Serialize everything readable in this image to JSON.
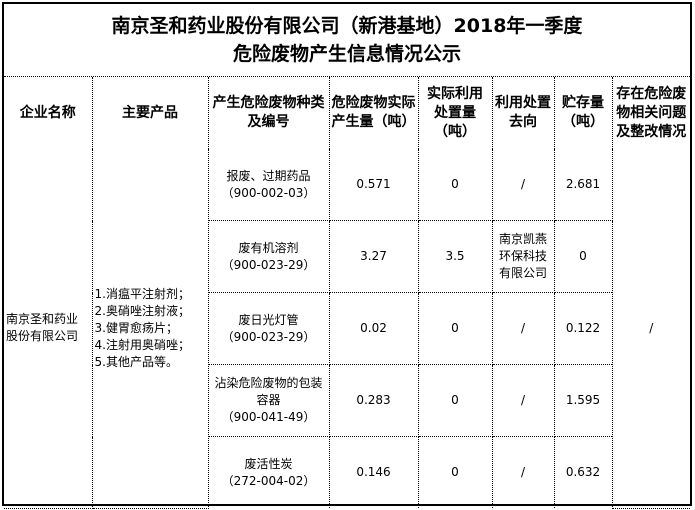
{
  "title": {
    "line1": "南京圣和药业股份有限公司（新港基地）2018年一季度",
    "line2": "危险废物产生信息情况公示"
  },
  "headers": [
    "企业名称",
    "主要产品",
    "产生危险废物种类及编号",
    "危险废物实际产生量（吨）",
    "实际利用处置量（吨）",
    "利用处置去向",
    "贮存量（吨）",
    "存在危险废物相关问题及整改情况"
  ],
  "company": "南京圣和药业股份有限公司",
  "products": [
    "1.消瘟平注射剂；",
    "2.奥硝唑注射液；",
    "3.健胃愈疡片；",
    "4.注射用奥硝唑；",
    "5.其他产品等。"
  ],
  "issues": "/",
  "rows": [
    {
      "waste": "报废、过期药品",
      "code": "（900-002-03）",
      "produced": "0.571",
      "disposed": "0",
      "destination": "/",
      "stored": "2.681"
    },
    {
      "waste": "废有机溶剂",
      "code": "（900-023-29）",
      "produced": "3.27",
      "disposed": "3.5",
      "destination": "南京凯燕环保科技有限公司",
      "stored": "0"
    },
    {
      "waste": "废日光灯管",
      "code": "（900-023-29）",
      "produced": "0.02",
      "disposed": "0",
      "destination": "/",
      "stored": "0.122"
    },
    {
      "waste": "沾染危险废物的包装容器",
      "code": "（900-041-49）",
      "produced": "0.283",
      "disposed": "0",
      "destination": "/",
      "stored": "1.595"
    },
    {
      "waste": "废活性炭",
      "code": "（272-004-02）",
      "produced": "0.146",
      "disposed": "0",
      "destination": "/",
      "stored": "0.632"
    }
  ]
}
